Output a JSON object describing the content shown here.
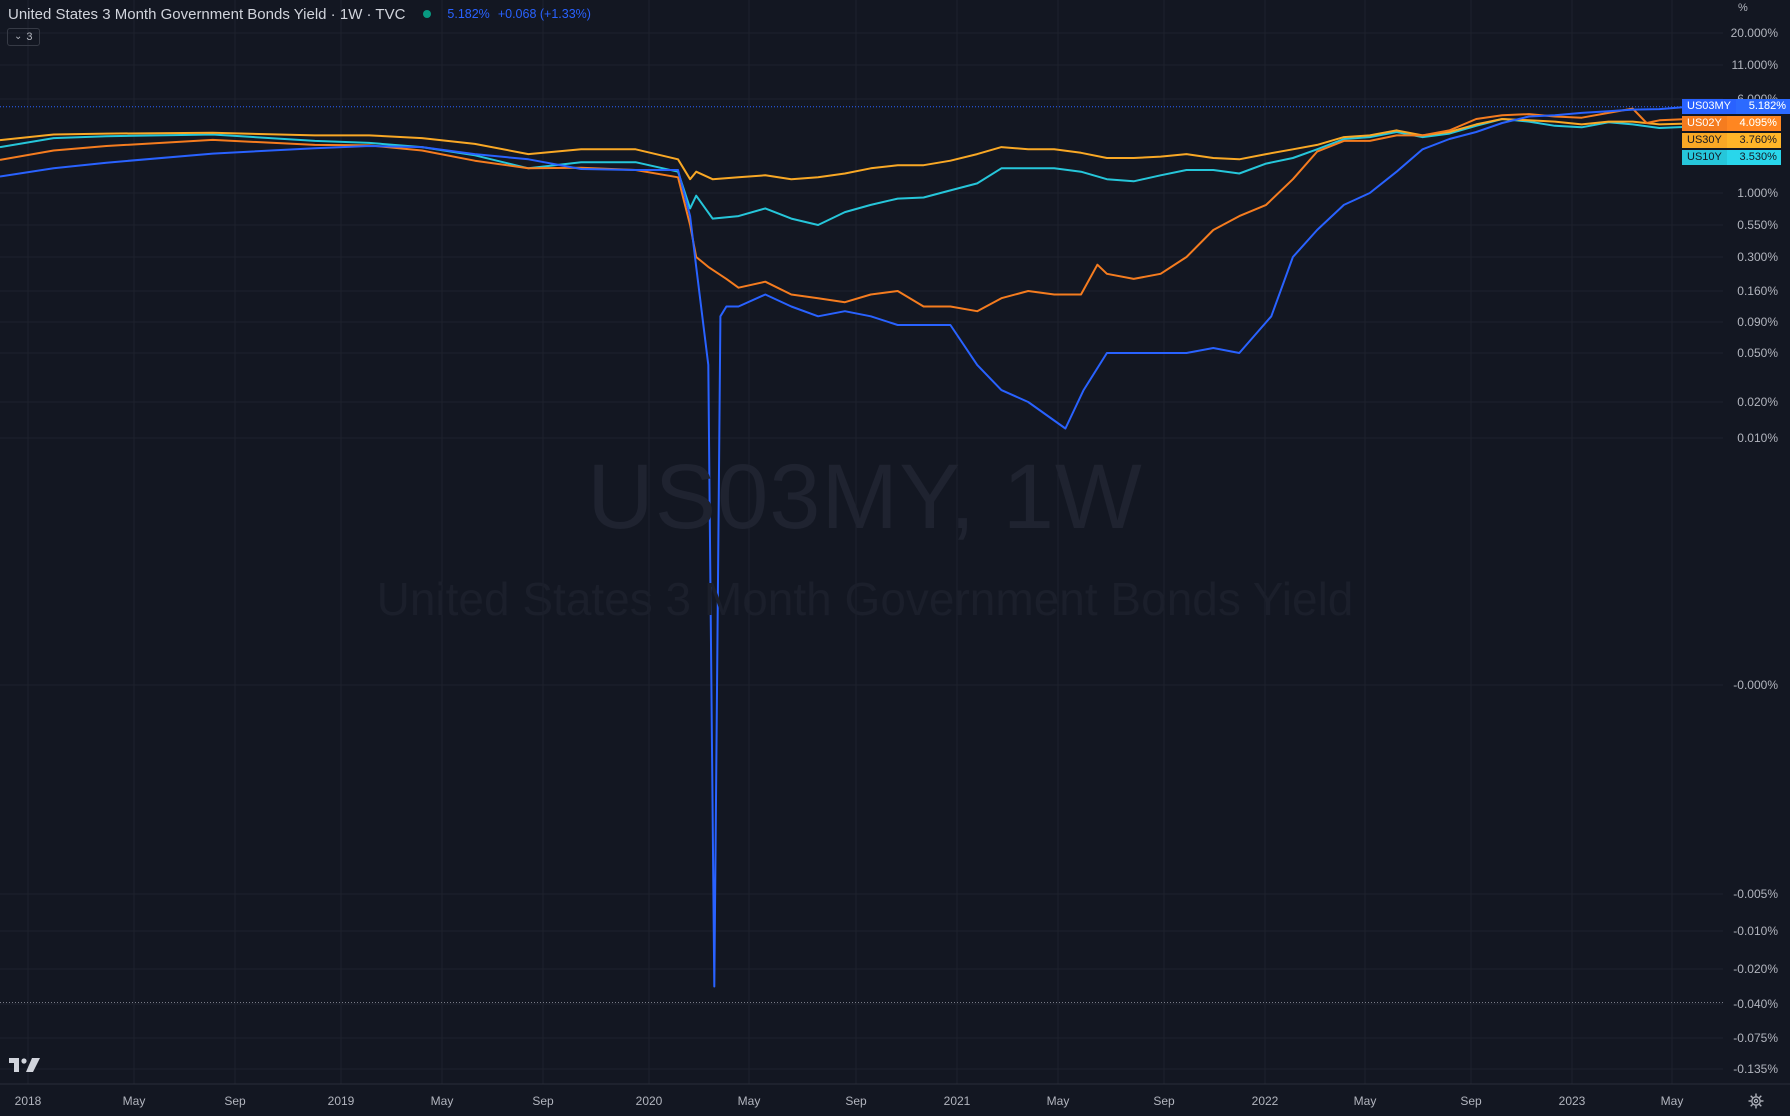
{
  "header": {
    "title": "United States 3 Month Government Bonds Yield · 1W · TVC",
    "last_price": "5.182%",
    "change": "+0.068 (+1.33%)",
    "collapse_count": "3"
  },
  "watermark": {
    "symbol": "US03MY, 1W",
    "description": "United States 3 Month Government Bonds Yield"
  },
  "axis": {
    "unit": "%"
  },
  "series_tags": [
    {
      "symbol": "US03MY",
      "value": "5.182%",
      "color": "#2962ff",
      "text_color": "#ffffff"
    },
    {
      "symbol": "US02Y",
      "value": "4.095%",
      "color": "#f57c1f",
      "text_color": "#ffffff"
    },
    {
      "symbol": "US30Y",
      "value": "3.760%",
      "color": "#f9a825",
      "text_color": "#131722"
    },
    {
      "symbol": "US10Y",
      "value": "3.530%",
      "color": "#26c6da",
      "text_color": "#131722"
    }
  ],
  "icons": {
    "logo": "tradingview-logo-icon",
    "settings": "gear-icon",
    "collapse": "chevron-down-icon",
    "status": "market-status-dot-icon"
  },
  "chart_data": {
    "type": "line",
    "scale": "percentage, logarithmic-style",
    "grid": true,
    "legend": "right price-axis tags",
    "x_ticks": [
      "2018",
      "May",
      "Sep",
      "2019",
      "May",
      "Sep",
      "2020",
      "May",
      "Sep",
      "2021",
      "May",
      "Sep",
      "2022",
      "May",
      "Sep",
      "2023",
      "May"
    ],
    "y_ticks": [
      "20.000%",
      "11.000%",
      "6.000%",
      "1.000%",
      "0.550%",
      "0.300%",
      "0.160%",
      "0.090%",
      "0.050%",
      "0.020%",
      "0.010%",
      "-0.000%",
      "-0.005%",
      "-0.010%",
      "-0.020%",
      "-0.040%",
      "-0.075%",
      "-0.135%"
    ],
    "y_ticks_value": [
      20.0,
      11.0,
      6.0,
      1.0,
      0.55,
      0.3,
      0.16,
      0.09,
      0.05,
      0.02,
      0.01,
      0.0,
      -0.005,
      -0.01,
      -0.02,
      -0.04,
      -0.075,
      -0.135
    ],
    "x_range": [
      "2017-12-29",
      "2023-05-12"
    ],
    "series": [
      {
        "name": "US03MY",
        "color": "#2962ff",
        "points": [
          [
            "2017-12-29",
            1.37
          ],
          [
            "2018-03-01",
            1.6
          ],
          [
            "2018-05-01",
            1.78
          ],
          [
            "2018-09-01",
            2.12
          ],
          [
            "2018-12-28",
            2.35
          ],
          [
            "2019-03-01",
            2.45
          ],
          [
            "2019-05-01",
            2.4
          ],
          [
            "2019-07-01",
            2.1
          ],
          [
            "2019-09-01",
            1.9
          ],
          [
            "2019-11-01",
            1.58
          ],
          [
            "2020-01-03",
            1.55
          ],
          [
            "2020-02-21",
            1.55
          ],
          [
            "2020-03-06",
            0.65
          ],
          [
            "2020-03-13",
            0.25
          ],
          [
            "2020-03-27",
            0.04
          ],
          [
            "2020-04-03",
            -0.03
          ],
          [
            "2020-04-10",
            0.1
          ],
          [
            "2020-04-17",
            0.12
          ],
          [
            "2020-05-01",
            0.12
          ],
          [
            "2020-06-01",
            0.15
          ],
          [
            "2020-07-01",
            0.12
          ],
          [
            "2020-08-01",
            0.1
          ],
          [
            "2020-09-01",
            0.11
          ],
          [
            "2020-10-01",
            0.1
          ],
          [
            "2020-11-01",
            0.085
          ],
          [
            "2020-12-01",
            0.085
          ],
          [
            "2021-01-01",
            0.085
          ],
          [
            "2021-02-01",
            0.04
          ],
          [
            "2021-03-01",
            0.025
          ],
          [
            "2021-04-01",
            0.02
          ],
          [
            "2021-05-14",
            0.012
          ],
          [
            "2021-06-04",
            0.025
          ],
          [
            "2021-07-01",
            0.05
          ],
          [
            "2021-08-01",
            0.05
          ],
          [
            "2021-09-01",
            0.05
          ],
          [
            "2021-10-01",
            0.05
          ],
          [
            "2021-11-01",
            0.055
          ],
          [
            "2021-12-01",
            0.05
          ],
          [
            "2022-01-07",
            0.1
          ],
          [
            "2022-02-01",
            0.3
          ],
          [
            "2022-03-01",
            0.5
          ],
          [
            "2022-04-01",
            0.8
          ],
          [
            "2022-05-01",
            1.0
          ],
          [
            "2022-06-01",
            1.5
          ],
          [
            "2022-07-01",
            2.3
          ],
          [
            "2022-08-01",
            2.8
          ],
          [
            "2022-09-01",
            3.2
          ],
          [
            "2022-10-01",
            3.8
          ],
          [
            "2022-11-01",
            4.3
          ],
          [
            "2022-12-01",
            4.4
          ],
          [
            "2023-01-01",
            4.6
          ],
          [
            "2023-02-01",
            4.75
          ],
          [
            "2023-03-01",
            4.9
          ],
          [
            "2023-04-01",
            4.95
          ],
          [
            "2023-05-05",
            5.182
          ]
        ]
      },
      {
        "name": "US02Y",
        "color": "#f57c1f",
        "points": [
          [
            "2017-12-29",
            1.88
          ],
          [
            "2018-03-01",
            2.25
          ],
          [
            "2018-05-01",
            2.45
          ],
          [
            "2018-09-01",
            2.75
          ],
          [
            "2018-12-28",
            2.5
          ],
          [
            "2019-03-01",
            2.48
          ],
          [
            "2019-05-01",
            2.25
          ],
          [
            "2019-07-01",
            1.85
          ],
          [
            "2019-09-01",
            1.6
          ],
          [
            "2019-11-01",
            1.62
          ],
          [
            "2020-01-03",
            1.55
          ],
          [
            "2020-02-21",
            1.35
          ],
          [
            "2020-03-06",
            0.55
          ],
          [
            "2020-03-13",
            0.3
          ],
          [
            "2020-03-27",
            0.25
          ],
          [
            "2020-04-17",
            0.2
          ],
          [
            "2020-05-01",
            0.17
          ],
          [
            "2020-06-01",
            0.19
          ],
          [
            "2020-07-01",
            0.15
          ],
          [
            "2020-08-01",
            0.14
          ],
          [
            "2020-09-01",
            0.13
          ],
          [
            "2020-10-01",
            0.15
          ],
          [
            "2020-11-01",
            0.16
          ],
          [
            "2020-12-01",
            0.12
          ],
          [
            "2021-01-01",
            0.12
          ],
          [
            "2021-02-01",
            0.11
          ],
          [
            "2021-03-01",
            0.14
          ],
          [
            "2021-04-01",
            0.16
          ],
          [
            "2021-05-01",
            0.15
          ],
          [
            "2021-06-01",
            0.15
          ],
          [
            "2021-06-20",
            0.26
          ],
          [
            "2021-07-01",
            0.22
          ],
          [
            "2021-08-01",
            0.2
          ],
          [
            "2021-09-01",
            0.22
          ],
          [
            "2021-10-01",
            0.3
          ],
          [
            "2021-11-01",
            0.5
          ],
          [
            "2021-12-01",
            0.65
          ],
          [
            "2022-01-01",
            0.8
          ],
          [
            "2022-02-01",
            1.3
          ],
          [
            "2022-03-01",
            2.2
          ],
          [
            "2022-04-01",
            2.7
          ],
          [
            "2022-05-01",
            2.7
          ],
          [
            "2022-06-01",
            3.0
          ],
          [
            "2022-07-01",
            3.0
          ],
          [
            "2022-08-01",
            3.3
          ],
          [
            "2022-09-01",
            4.1
          ],
          [
            "2022-10-01",
            4.4
          ],
          [
            "2022-11-01",
            4.5
          ],
          [
            "2022-12-01",
            4.3
          ],
          [
            "2023-01-01",
            4.2
          ],
          [
            "2023-02-01",
            4.6
          ],
          [
            "2023-03-01",
            5.0
          ],
          [
            "2023-03-17",
            3.8
          ],
          [
            "2023-04-01",
            4.0
          ],
          [
            "2023-05-05",
            4.095
          ]
        ]
      },
      {
        "name": "US30Y",
        "color": "#f9a825",
        "points": [
          [
            "2017-12-29",
            2.74
          ],
          [
            "2018-03-01",
            3.05
          ],
          [
            "2018-05-01",
            3.1
          ],
          [
            "2018-09-01",
            3.15
          ],
          [
            "2018-12-28",
            3.0
          ],
          [
            "2019-03-01",
            3.0
          ],
          [
            "2019-05-01",
            2.85
          ],
          [
            "2019-07-01",
            2.55
          ],
          [
            "2019-09-01",
            2.1
          ],
          [
            "2019-11-01",
            2.3
          ],
          [
            "2020-01-03",
            2.3
          ],
          [
            "2020-02-21",
            1.9
          ],
          [
            "2020-03-06",
            1.3
          ],
          [
            "2020-03-13",
            1.5
          ],
          [
            "2020-04-01",
            1.3
          ],
          [
            "2020-05-01",
            1.35
          ],
          [
            "2020-06-01",
            1.4
          ],
          [
            "2020-07-01",
            1.3
          ],
          [
            "2020-08-01",
            1.35
          ],
          [
            "2020-09-01",
            1.45
          ],
          [
            "2020-10-01",
            1.6
          ],
          [
            "2020-11-01",
            1.7
          ],
          [
            "2020-12-01",
            1.7
          ],
          [
            "2021-01-01",
            1.85
          ],
          [
            "2021-02-01",
            2.1
          ],
          [
            "2021-03-01",
            2.4
          ],
          [
            "2021-04-01",
            2.3
          ],
          [
            "2021-05-01",
            2.3
          ],
          [
            "2021-06-01",
            2.15
          ],
          [
            "2021-07-01",
            1.95
          ],
          [
            "2021-08-01",
            1.95
          ],
          [
            "2021-09-01",
            2.0
          ],
          [
            "2021-10-01",
            2.1
          ],
          [
            "2021-11-01",
            1.95
          ],
          [
            "2021-12-01",
            1.9
          ],
          [
            "2022-01-01",
            2.1
          ],
          [
            "2022-02-01",
            2.3
          ],
          [
            "2022-03-01",
            2.5
          ],
          [
            "2022-04-01",
            2.9
          ],
          [
            "2022-05-01",
            3.0
          ],
          [
            "2022-06-01",
            3.3
          ],
          [
            "2022-07-01",
            3.0
          ],
          [
            "2022-08-01",
            3.2
          ],
          [
            "2022-09-01",
            3.7
          ],
          [
            "2022-10-01",
            4.1
          ],
          [
            "2022-11-01",
            4.0
          ],
          [
            "2022-12-01",
            3.9
          ],
          [
            "2023-01-01",
            3.7
          ],
          [
            "2023-02-01",
            3.9
          ],
          [
            "2023-03-01",
            3.9
          ],
          [
            "2023-04-01",
            3.7
          ],
          [
            "2023-05-05",
            3.76
          ]
        ]
      },
      {
        "name": "US10Y",
        "color": "#26c6da",
        "points": [
          [
            "2017-12-29",
            2.4
          ],
          [
            "2018-03-01",
            2.85
          ],
          [
            "2018-05-01",
            2.95
          ],
          [
            "2018-09-01",
            3.05
          ],
          [
            "2018-12-28",
            2.7
          ],
          [
            "2019-03-01",
            2.6
          ],
          [
            "2019-05-01",
            2.4
          ],
          [
            "2019-07-01",
            2.05
          ],
          [
            "2019-09-01",
            1.6
          ],
          [
            "2019-11-01",
            1.8
          ],
          [
            "2020-01-03",
            1.8
          ],
          [
            "2020-02-21",
            1.5
          ],
          [
            "2020-03-06",
            0.75
          ],
          [
            "2020-03-13",
            0.95
          ],
          [
            "2020-04-01",
            0.62
          ],
          [
            "2020-05-01",
            0.65
          ],
          [
            "2020-06-01",
            0.75
          ],
          [
            "2020-07-01",
            0.62
          ],
          [
            "2020-08-01",
            0.55
          ],
          [
            "2020-09-01",
            0.7
          ],
          [
            "2020-10-01",
            0.8
          ],
          [
            "2020-11-01",
            0.9
          ],
          [
            "2020-12-01",
            0.92
          ],
          [
            "2021-01-01",
            1.05
          ],
          [
            "2021-02-01",
            1.2
          ],
          [
            "2021-03-01",
            1.6
          ],
          [
            "2021-04-01",
            1.6
          ],
          [
            "2021-05-01",
            1.6
          ],
          [
            "2021-06-01",
            1.5
          ],
          [
            "2021-07-01",
            1.3
          ],
          [
            "2021-08-01",
            1.25
          ],
          [
            "2021-09-01",
            1.4
          ],
          [
            "2021-10-01",
            1.55
          ],
          [
            "2021-11-01",
            1.55
          ],
          [
            "2021-12-01",
            1.45
          ],
          [
            "2022-01-01",
            1.75
          ],
          [
            "2022-02-01",
            1.95
          ],
          [
            "2022-03-01",
            2.3
          ],
          [
            "2022-04-01",
            2.8
          ],
          [
            "2022-05-01",
            2.9
          ],
          [
            "2022-06-01",
            3.2
          ],
          [
            "2022-07-01",
            2.9
          ],
          [
            "2022-08-01",
            3.1
          ],
          [
            "2022-09-01",
            3.6
          ],
          [
            "2022-10-01",
            4.1
          ],
          [
            "2022-11-01",
            3.9
          ],
          [
            "2022-12-01",
            3.6
          ],
          [
            "2023-01-01",
            3.5
          ],
          [
            "2023-02-01",
            3.85
          ],
          [
            "2023-03-01",
            3.7
          ],
          [
            "2023-04-01",
            3.45
          ],
          [
            "2023-05-05",
            3.53
          ]
        ]
      }
    ]
  }
}
